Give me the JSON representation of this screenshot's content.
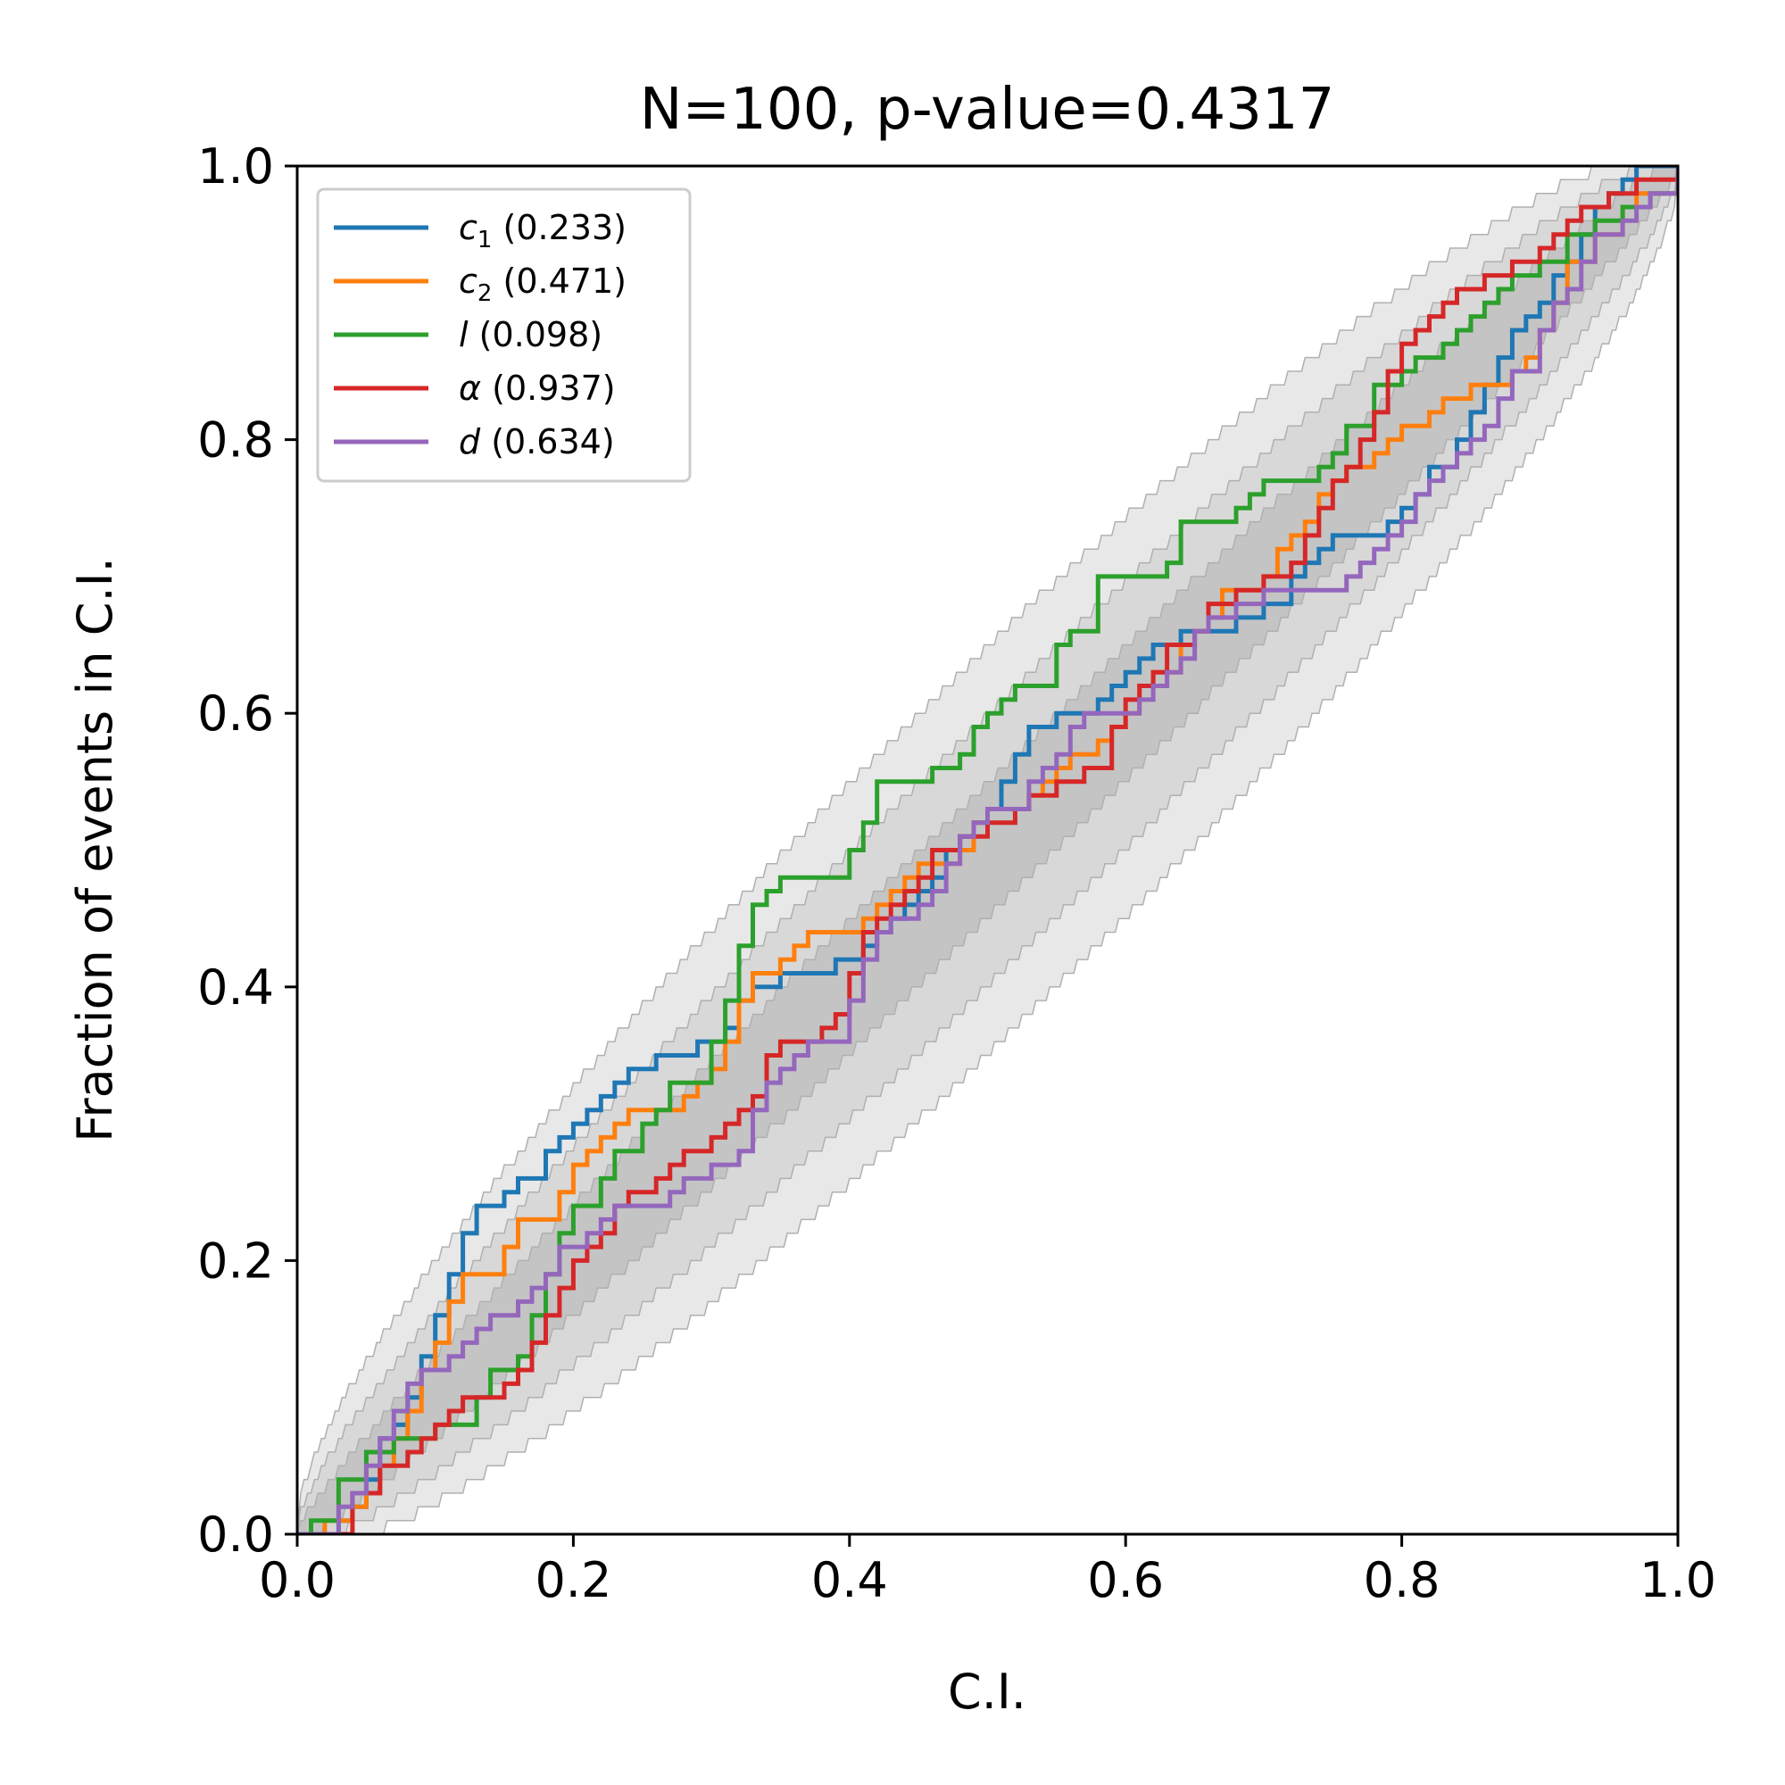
{
  "chart_data": {
    "type": "line",
    "title": "N=100, p-value=0.4317",
    "xlabel": "C.I.",
    "ylabel": "Fraction of events in C.I.",
    "xlim": [
      0,
      1
    ],
    "ylim": [
      0,
      1
    ],
    "xticks": [
      "0.0",
      "0.2",
      "0.4",
      "0.6",
      "0.8",
      "1.0"
    ],
    "yticks": [
      "0.0",
      "0.2",
      "0.4",
      "0.6",
      "0.8",
      "1.0"
    ],
    "grid": false,
    "legend_position": "upper-left",
    "confidence_bands": {
      "n": 100,
      "levels": [
        "1σ",
        "2σ",
        "3σ"
      ],
      "colors": [
        "#c4c4c4",
        "#d8d8d8",
        "#e8e8e8"
      ]
    },
    "series": [
      {
        "name": "c",
        "subscript": "1",
        "pvalue": "(0.233)",
        "color": "#1f77b4",
        "x": [
          0,
          0.03,
          0.04,
          0.05,
          0.06,
          0.07,
          0.08,
          0.09,
          0.1,
          0.11,
          0.12,
          0.13,
          0.14,
          0.15,
          0.16,
          0.18,
          0.19,
          0.2,
          0.21,
          0.22,
          0.23,
          0.24,
          0.25,
          0.26,
          0.27,
          0.28,
          0.29,
          0.3,
          0.31,
          0.32,
          0.33,
          0.34,
          0.35,
          0.37,
          0.39,
          0.4,
          0.41,
          0.42,
          0.43,
          0.44,
          0.45,
          0.46,
          0.47,
          0.48,
          0.49,
          0.5,
          0.51,
          0.52,
          0.53,
          0.55,
          0.57,
          0.58,
          0.59,
          0.6,
          0.61,
          0.62,
          0.64,
          0.66,
          0.68,
          0.7,
          0.72,
          0.73,
          0.74,
          0.75,
          0.78,
          0.79,
          0.8,
          0.81,
          0.82,
          0.84,
          0.85,
          0.86,
          0.87,
          0.88,
          0.89,
          0.9,
          0.91,
          0.92,
          0.93,
          0.94,
          0.95,
          0.96,
          0.97,
          1.0
        ],
        "y": [
          0,
          0.01,
          0.02,
          0.04,
          0.07,
          0.08,
          0.1,
          0.13,
          0.16,
          0.19,
          0.22,
          0.24,
          0.24,
          0.25,
          0.26,
          0.28,
          0.29,
          0.3,
          0.31,
          0.32,
          0.33,
          0.34,
          0.34,
          0.35,
          0.35,
          0.35,
          0.36,
          0.36,
          0.37,
          0.39,
          0.4,
          0.4,
          0.41,
          0.41,
          0.42,
          0.42,
          0.43,
          0.44,
          0.45,
          0.46,
          0.47,
          0.48,
          0.5,
          0.51,
          0.52,
          0.53,
          0.55,
          0.57,
          0.59,
          0.6,
          0.6,
          0.61,
          0.62,
          0.63,
          0.64,
          0.65,
          0.66,
          0.66,
          0.67,
          0.68,
          0.7,
          0.71,
          0.72,
          0.73,
          0.73,
          0.74,
          0.75,
          0.76,
          0.78,
          0.8,
          0.82,
          0.84,
          0.86,
          0.88,
          0.89,
          0.9,
          0.92,
          0.93,
          0.95,
          0.97,
          0.98,
          0.99,
          1.0,
          1.0
        ]
      },
      {
        "name": "c",
        "subscript": "2",
        "pvalue": "(0.471)",
        "color": "#ff7f0e",
        "x": [
          0,
          0.02,
          0.04,
          0.05,
          0.06,
          0.07,
          0.08,
          0.09,
          0.1,
          0.11,
          0.12,
          0.13,
          0.15,
          0.16,
          0.17,
          0.19,
          0.2,
          0.21,
          0.22,
          0.23,
          0.24,
          0.25,
          0.28,
          0.29,
          0.3,
          0.31,
          0.32,
          0.33,
          0.35,
          0.36,
          0.37,
          0.38,
          0.41,
          0.42,
          0.43,
          0.44,
          0.45,
          0.47,
          0.48,
          0.49,
          0.5,
          0.51,
          0.53,
          0.54,
          0.55,
          0.56,
          0.58,
          0.59,
          0.6,
          0.61,
          0.62,
          0.64,
          0.65,
          0.66,
          0.67,
          0.69,
          0.7,
          0.71,
          0.72,
          0.73,
          0.74,
          0.75,
          0.76,
          0.78,
          0.79,
          0.8,
          0.81,
          0.82,
          0.83,
          0.84,
          0.85,
          0.86,
          0.88,
          0.89,
          0.9,
          0.91,
          0.92,
          0.94,
          0.96,
          0.97,
          1.0
        ],
        "y": [
          0,
          0.01,
          0.02,
          0.03,
          0.05,
          0.07,
          0.09,
          0.12,
          0.14,
          0.17,
          0.19,
          0.19,
          0.21,
          0.23,
          0.23,
          0.25,
          0.27,
          0.28,
          0.29,
          0.3,
          0.31,
          0.31,
          0.32,
          0.33,
          0.34,
          0.36,
          0.39,
          0.41,
          0.42,
          0.43,
          0.44,
          0.44,
          0.45,
          0.46,
          0.47,
          0.48,
          0.49,
          0.49,
          0.5,
          0.52,
          0.53,
          0.53,
          0.54,
          0.55,
          0.56,
          0.57,
          0.58,
          0.59,
          0.6,
          0.62,
          0.63,
          0.65,
          0.66,
          0.67,
          0.69,
          0.69,
          0.7,
          0.72,
          0.73,
          0.74,
          0.76,
          0.77,
          0.78,
          0.79,
          0.8,
          0.81,
          0.81,
          0.82,
          0.83,
          0.83,
          0.84,
          0.84,
          0.85,
          0.86,
          0.88,
          0.9,
          0.93,
          0.95,
          0.97,
          0.98,
          1.0
        ]
      },
      {
        "name": "l",
        "subscript": "",
        "pvalue": "(0.098)",
        "color": "#2ca02c",
        "x": [
          0,
          0.01,
          0.03,
          0.05,
          0.07,
          0.1,
          0.12,
          0.13,
          0.14,
          0.16,
          0.17,
          0.18,
          0.19,
          0.2,
          0.22,
          0.23,
          0.25,
          0.26,
          0.27,
          0.3,
          0.31,
          0.32,
          0.33,
          0.34,
          0.35,
          0.37,
          0.4,
          0.41,
          0.42,
          0.43,
          0.46,
          0.48,
          0.49,
          0.5,
          0.51,
          0.52,
          0.54,
          0.55,
          0.56,
          0.58,
          0.6,
          0.63,
          0.64,
          0.66,
          0.68,
          0.69,
          0.7,
          0.71,
          0.74,
          0.75,
          0.76,
          0.78,
          0.79,
          0.8,
          0.81,
          0.83,
          0.84,
          0.85,
          0.86,
          0.87,
          0.88,
          0.9,
          0.92,
          0.94,
          0.96,
          0.98,
          1.0
        ],
        "y": [
          0,
          0.01,
          0.04,
          0.06,
          0.07,
          0.08,
          0.08,
          0.1,
          0.12,
          0.13,
          0.16,
          0.19,
          0.22,
          0.24,
          0.26,
          0.28,
          0.3,
          0.31,
          0.33,
          0.36,
          0.39,
          0.43,
          0.46,
          0.47,
          0.48,
          0.48,
          0.5,
          0.52,
          0.55,
          0.55,
          0.56,
          0.57,
          0.59,
          0.6,
          0.61,
          0.62,
          0.62,
          0.65,
          0.66,
          0.7,
          0.7,
          0.71,
          0.74,
          0.74,
          0.75,
          0.76,
          0.77,
          0.77,
          0.78,
          0.79,
          0.81,
          0.84,
          0.84,
          0.85,
          0.86,
          0.87,
          0.88,
          0.89,
          0.9,
          0.91,
          0.92,
          0.93,
          0.95,
          0.96,
          0.97,
          0.98,
          1.0
        ]
      },
      {
        "name": "α",
        "subscript": "",
        "pvalue": "(0.937)",
        "color": "#d62728",
        "x": [
          0,
          0.04,
          0.06,
          0.08,
          0.09,
          0.1,
          0.11,
          0.12,
          0.15,
          0.16,
          0.17,
          0.18,
          0.19,
          0.2,
          0.21,
          0.22,
          0.23,
          0.24,
          0.26,
          0.27,
          0.28,
          0.3,
          0.31,
          0.32,
          0.33,
          0.34,
          0.35,
          0.36,
          0.38,
          0.39,
          0.4,
          0.41,
          0.42,
          0.43,
          0.44,
          0.45,
          0.46,
          0.47,
          0.48,
          0.5,
          0.51,
          0.52,
          0.53,
          0.54,
          0.55,
          0.56,
          0.57,
          0.59,
          0.6,
          0.61,
          0.62,
          0.63,
          0.65,
          0.66,
          0.67,
          0.68,
          0.69,
          0.7,
          0.72,
          0.73,
          0.74,
          0.75,
          0.76,
          0.77,
          0.78,
          0.79,
          0.8,
          0.81,
          0.82,
          0.83,
          0.84,
          0.86,
          0.88,
          0.9,
          0.91,
          0.92,
          0.93,
          0.95,
          0.97,
          1.0
        ],
        "y": [
          0,
          0.03,
          0.05,
          0.06,
          0.07,
          0.08,
          0.09,
          0.1,
          0.11,
          0.12,
          0.14,
          0.16,
          0.18,
          0.2,
          0.21,
          0.22,
          0.24,
          0.25,
          0.26,
          0.27,
          0.28,
          0.29,
          0.3,
          0.31,
          0.32,
          0.35,
          0.36,
          0.36,
          0.37,
          0.38,
          0.41,
          0.44,
          0.45,
          0.46,
          0.47,
          0.48,
          0.5,
          0.5,
          0.51,
          0.52,
          0.52,
          0.53,
          0.54,
          0.54,
          0.55,
          0.55,
          0.56,
          0.59,
          0.61,
          0.62,
          0.63,
          0.65,
          0.66,
          0.68,
          0.68,
          0.69,
          0.69,
          0.7,
          0.71,
          0.73,
          0.75,
          0.77,
          0.78,
          0.8,
          0.82,
          0.85,
          0.87,
          0.88,
          0.89,
          0.9,
          0.91,
          0.92,
          0.93,
          0.94,
          0.95,
          0.96,
          0.97,
          0.98,
          0.99,
          1.0
        ]
      },
      {
        "name": "d",
        "subscript": "",
        "pvalue": "(0.634)",
        "color": "#9467bd",
        "x": [
          0,
          0.03,
          0.04,
          0.05,
          0.06,
          0.07,
          0.08,
          0.09,
          0.1,
          0.11,
          0.12,
          0.13,
          0.14,
          0.16,
          0.17,
          0.18,
          0.19,
          0.21,
          0.22,
          0.23,
          0.25,
          0.27,
          0.28,
          0.29,
          0.3,
          0.31,
          0.32,
          0.33,
          0.34,
          0.35,
          0.36,
          0.37,
          0.38,
          0.4,
          0.41,
          0.42,
          0.43,
          0.45,
          0.46,
          0.47,
          0.48,
          0.49,
          0.5,
          0.52,
          0.53,
          0.54,
          0.55,
          0.56,
          0.57,
          0.59,
          0.6,
          0.61,
          0.62,
          0.63,
          0.64,
          0.65,
          0.66,
          0.68,
          0.7,
          0.72,
          0.74,
          0.76,
          0.77,
          0.78,
          0.79,
          0.8,
          0.81,
          0.82,
          0.83,
          0.84,
          0.85,
          0.86,
          0.87,
          0.88,
          0.9,
          0.91,
          0.92,
          0.93,
          0.94,
          0.96,
          0.97,
          0.98,
          1.0
        ],
        "y": [
          0,
          0.02,
          0.03,
          0.05,
          0.07,
          0.09,
          0.11,
          0.12,
          0.12,
          0.13,
          0.14,
          0.15,
          0.16,
          0.17,
          0.18,
          0.19,
          0.21,
          0.22,
          0.23,
          0.24,
          0.24,
          0.25,
          0.26,
          0.26,
          0.27,
          0.27,
          0.28,
          0.31,
          0.33,
          0.34,
          0.35,
          0.36,
          0.36,
          0.39,
          0.42,
          0.44,
          0.45,
          0.46,
          0.47,
          0.49,
          0.51,
          0.52,
          0.53,
          0.53,
          0.55,
          0.56,
          0.57,
          0.59,
          0.6,
          0.6,
          0.6,
          0.61,
          0.62,
          0.63,
          0.64,
          0.66,
          0.67,
          0.68,
          0.69,
          0.69,
          0.69,
          0.7,
          0.71,
          0.72,
          0.73,
          0.74,
          0.76,
          0.77,
          0.78,
          0.79,
          0.8,
          0.81,
          0.83,
          0.85,
          0.88,
          0.9,
          0.91,
          0.93,
          0.95,
          0.96,
          0.97,
          0.98,
          1.0
        ]
      }
    ]
  }
}
